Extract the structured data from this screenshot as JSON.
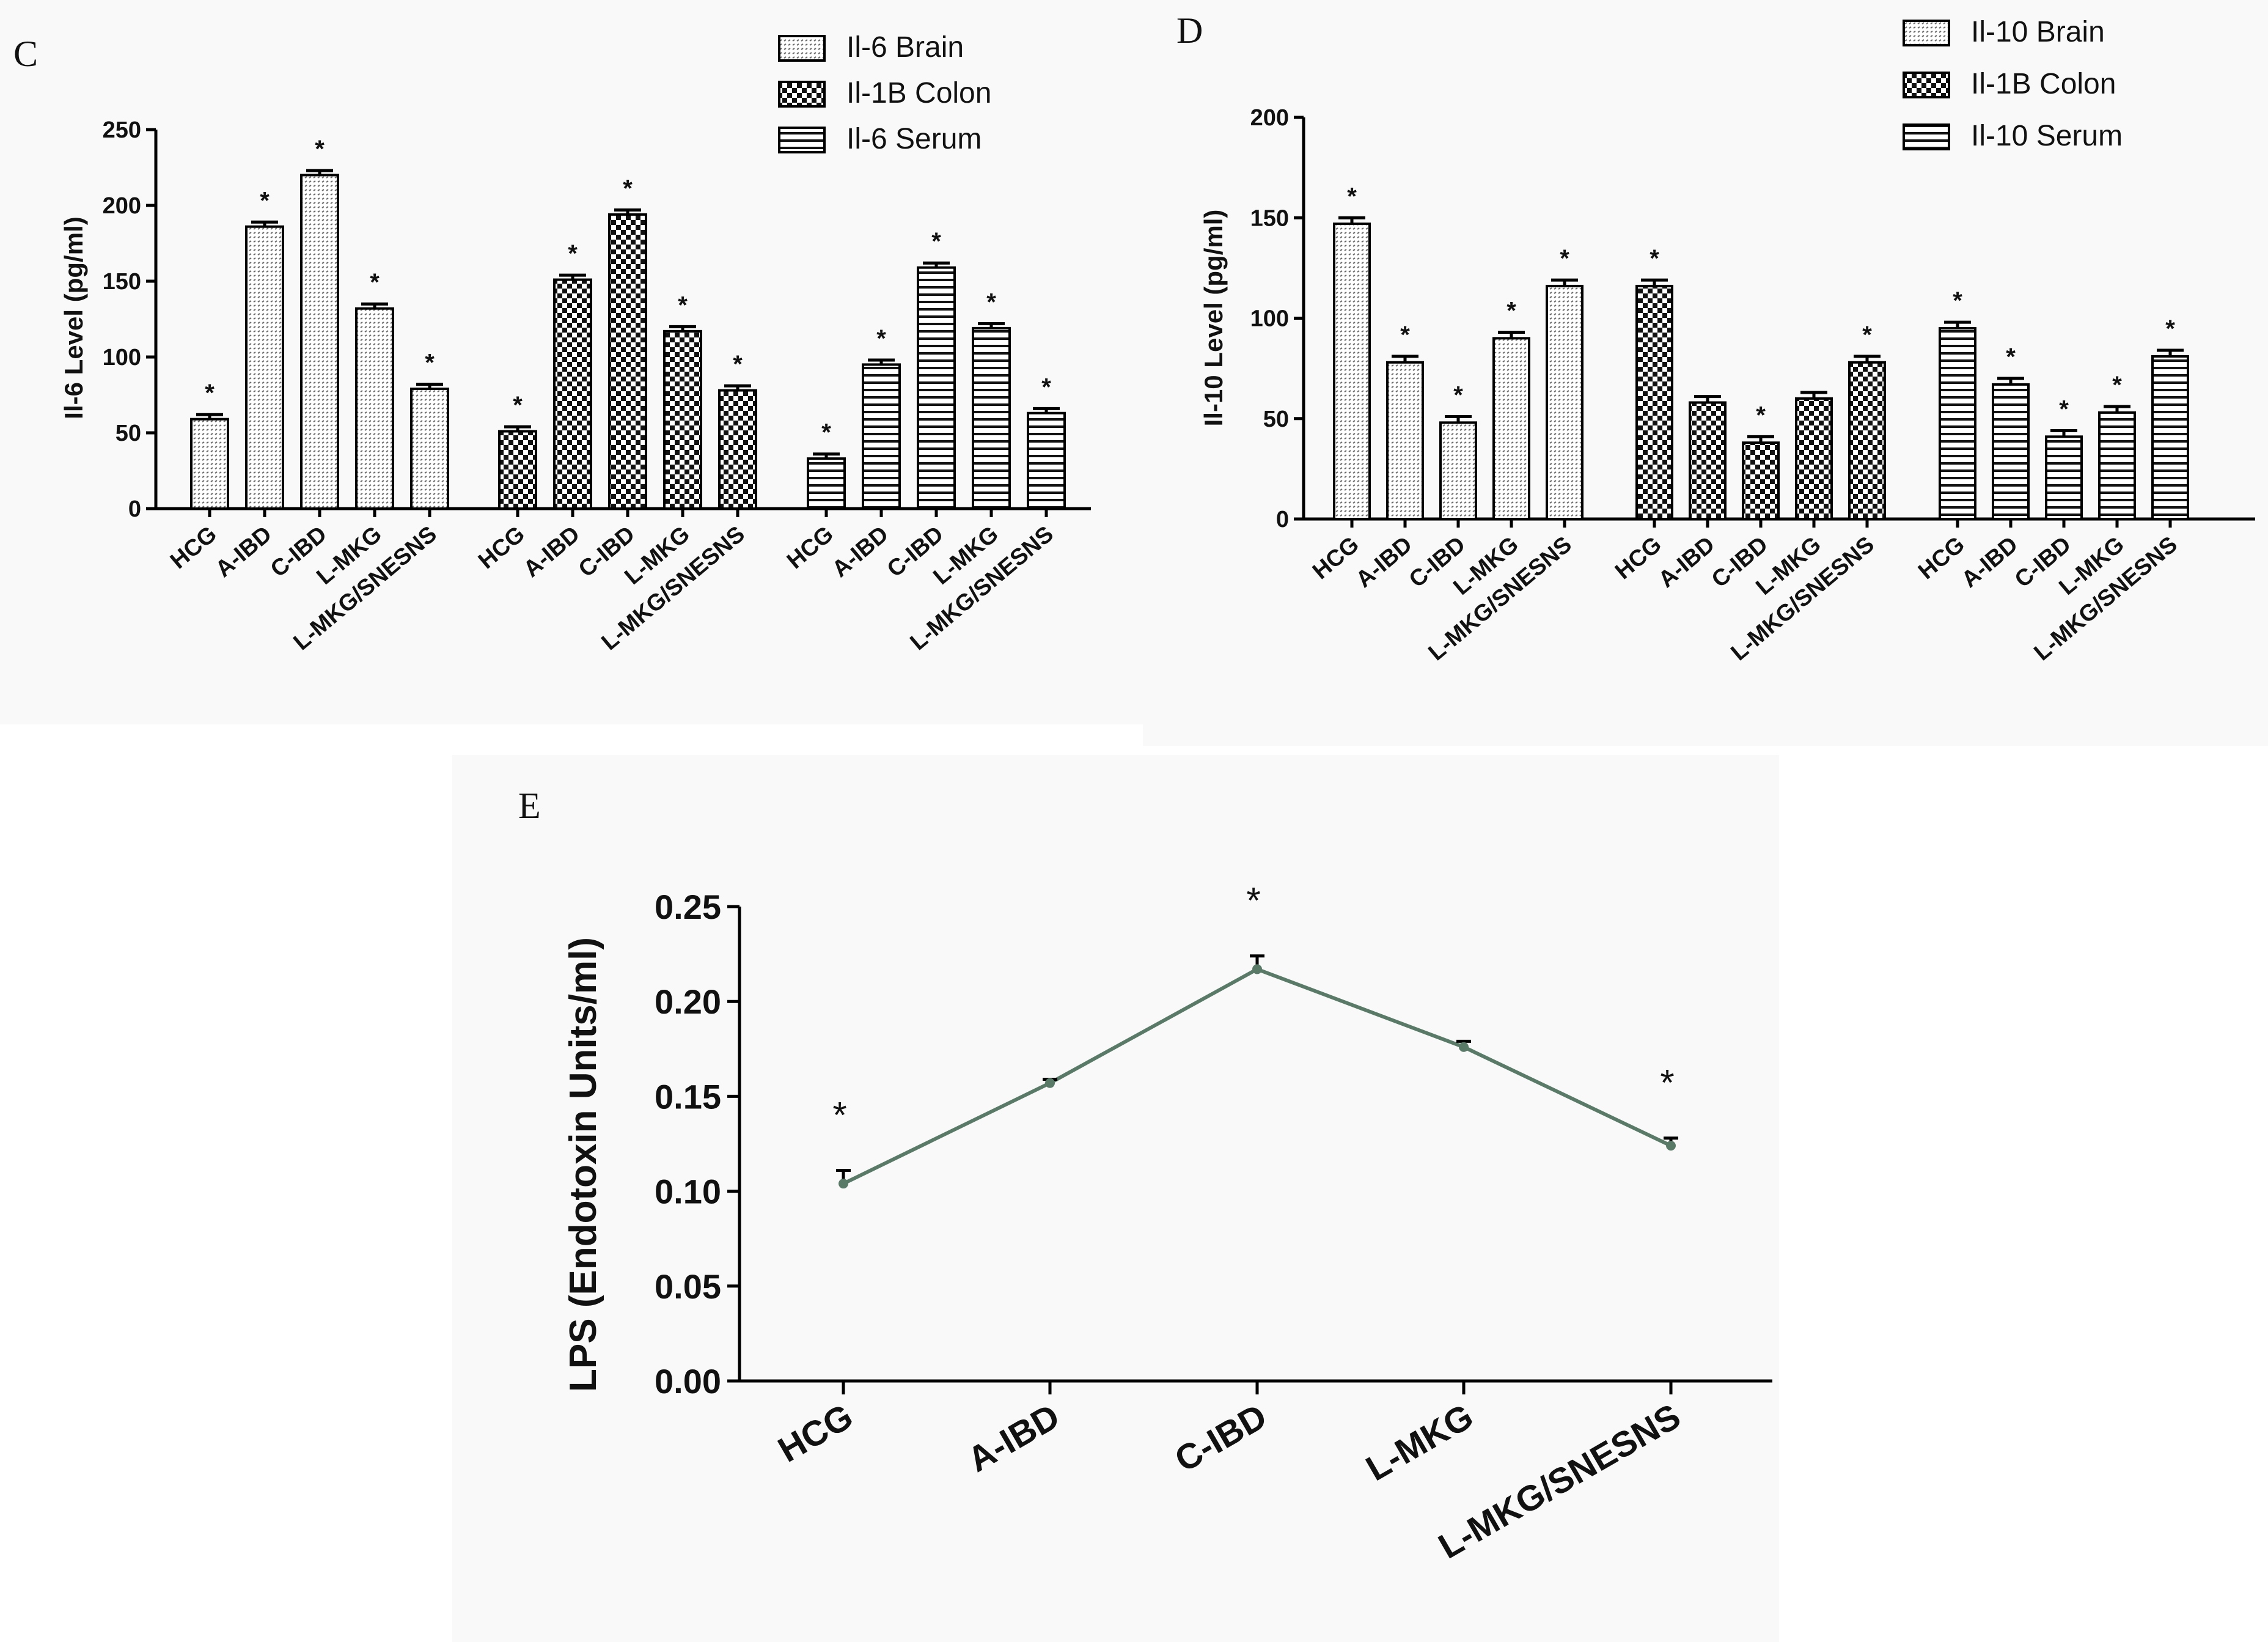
{
  "colors": {
    "line": "#5a7a68",
    "bar_fill": "#ffffff",
    "axis": "#000000"
  },
  "chart_data": [
    {
      "id": "panel-c",
      "panel_label": "C",
      "type": "bar",
      "ylabel": "Il-6 Level (pg/ml)",
      "ylim": [
        0,
        250
      ],
      "yticks": [
        0,
        50,
        100,
        150,
        200,
        250
      ],
      "categories": [
        "HCG",
        "A-IBD",
        "C-IBD",
        "L-MKG",
        "L-MKG/SNESNS"
      ],
      "legend_position": "top-right",
      "series": [
        {
          "name": "Il-6 Brain",
          "pattern": "dots",
          "values": [
            59,
            186,
            220,
            132,
            79
          ],
          "errors": [
            3,
            3,
            3,
            3,
            3
          ],
          "significant": [
            true,
            true,
            true,
            true,
            true
          ]
        },
        {
          "name": "Il-1B Colon",
          "pattern": "checker",
          "values": [
            51,
            151,
            194,
            117,
            78
          ],
          "errors": [
            3,
            3,
            3,
            3,
            3
          ],
          "significant": [
            true,
            true,
            true,
            true,
            true
          ]
        },
        {
          "name": "Il-6  Serum",
          "pattern": "stripes",
          "values": [
            33,
            95,
            159,
            119,
            63
          ],
          "errors": [
            3,
            3,
            3,
            3,
            3
          ],
          "significant": [
            true,
            true,
            true,
            true,
            true
          ]
        }
      ]
    },
    {
      "id": "panel-d",
      "panel_label": "D",
      "type": "bar",
      "ylabel": "Il-10 Level (pg/ml)",
      "ylim": [
        0,
        200
      ],
      "yticks": [
        0,
        50,
        100,
        150,
        200
      ],
      "categories": [
        "HCG",
        "A-IBD",
        "C-IBD",
        "L-MKG",
        "L-MKG/SNESNS"
      ],
      "legend_position": "top-right",
      "series": [
        {
          "name": "Il-10 Brain",
          "pattern": "dots",
          "values": [
            147,
            78,
            48,
            90,
            116
          ],
          "errors": [
            3,
            3,
            3,
            3,
            3
          ],
          "significant": [
            true,
            true,
            true,
            true,
            true
          ]
        },
        {
          "name": "Il-1B Colon",
          "pattern": "checker",
          "values": [
            116,
            58,
            38,
            60,
            78
          ],
          "errors": [
            3,
            3,
            3,
            3,
            3
          ],
          "significant": [
            true,
            false,
            true,
            false,
            true
          ]
        },
        {
          "name": "Il-10  Serum",
          "pattern": "stripes",
          "values": [
            95,
            67,
            41,
            53,
            81
          ],
          "errors": [
            3,
            3,
            3,
            3,
            3
          ],
          "significant": [
            true,
            true,
            true,
            true,
            true
          ]
        }
      ]
    },
    {
      "id": "panel-e",
      "panel_label": "E",
      "type": "line",
      "ylabel": "LPS (Endotoxin Units/ml)",
      "ylim": [
        0,
        0.25
      ],
      "yticks": [
        "0.00",
        "0.05",
        "0.10",
        "0.15",
        "0.20",
        "0.25"
      ],
      "categories": [
        "HCG",
        "A-IBD",
        "C-IBD",
        "L-MKG",
        "L-MKG/SNESNS"
      ],
      "series": [
        {
          "name": "LPS",
          "values": [
            0.104,
            0.157,
            0.217,
            0.176,
            0.124
          ],
          "errors": [
            0.007,
            0.002,
            0.007,
            0.003,
            0.004
          ],
          "significant": [
            true,
            false,
            true,
            false,
            true
          ]
        }
      ]
    }
  ]
}
